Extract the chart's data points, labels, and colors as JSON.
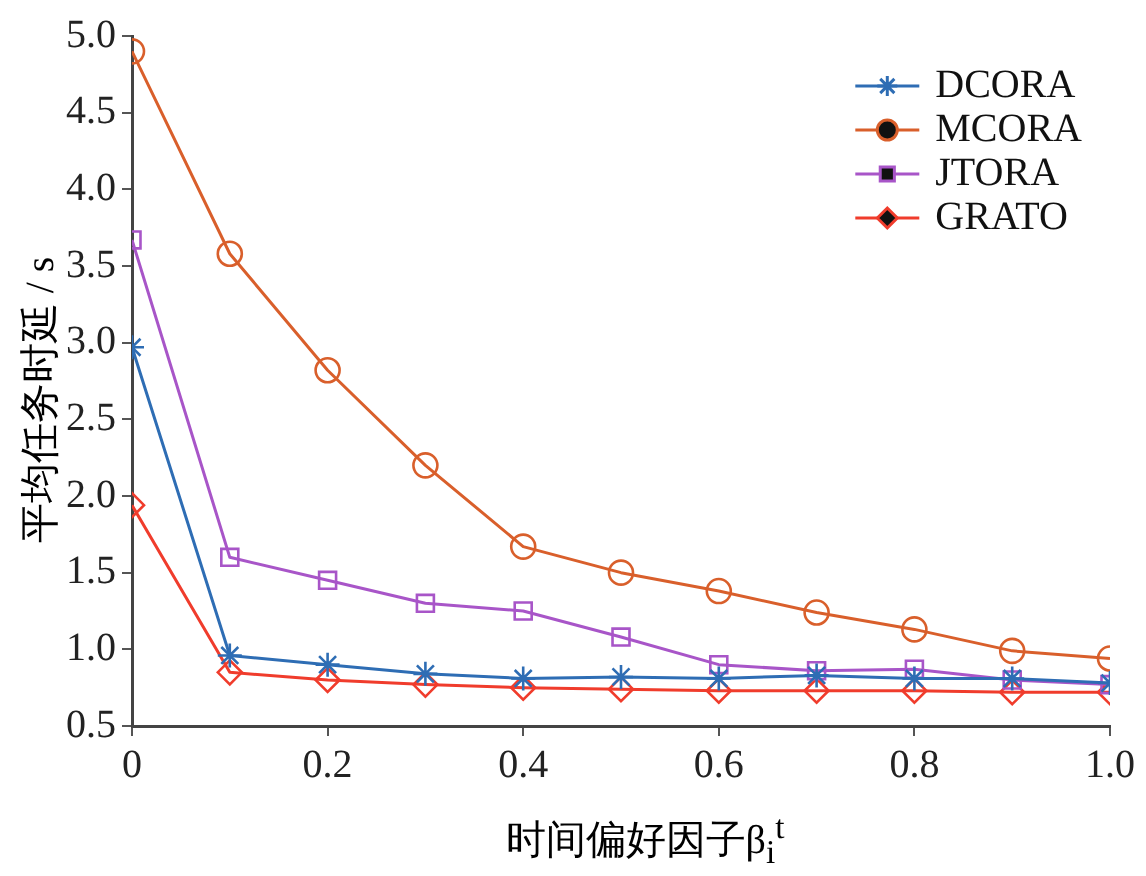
{
  "chart_data": {
    "type": "line",
    "xlabel": "时间偏好因子β$_{i}$$^{t}$",
    "ylabel": "平均任务时延 / s",
    "x": [
      0,
      0.1,
      0.2,
      0.3,
      0.4,
      0.5,
      0.6,
      0.7,
      0.8,
      0.9,
      1.0
    ],
    "series": [
      {
        "name": "DCORA",
        "color": "#2e6db4",
        "marker": "cross",
        "values": [
          2.97,
          0.96,
          0.9,
          0.84,
          0.81,
          0.82,
          0.81,
          0.83,
          0.81,
          0.81,
          0.78
        ]
      },
      {
        "name": "MCORA",
        "color": "#d95f2b",
        "marker": "circle",
        "values": [
          4.9,
          3.58,
          2.82,
          2.2,
          1.67,
          1.5,
          1.38,
          1.24,
          1.13,
          0.99,
          0.94
        ]
      },
      {
        "name": "JTORA",
        "color": "#a855c8",
        "marker": "square",
        "values": [
          3.67,
          1.6,
          1.45,
          1.3,
          1.25,
          1.08,
          0.9,
          0.86,
          0.87,
          0.8,
          0.77
        ]
      },
      {
        "name": "GRATO",
        "color": "#f03c2c",
        "marker": "diamond",
        "values": [
          1.94,
          0.85,
          0.8,
          0.77,
          0.75,
          0.74,
          0.73,
          0.73,
          0.73,
          0.72,
          0.72
        ]
      }
    ],
    "xlim": [
      0,
      1.0
    ],
    "xticks": [
      0,
      0.2,
      0.4,
      0.6,
      0.8,
      {
        "value": 1.0,
        "label": "1.0"
      }
    ],
    "ylim": [
      0.5,
      5.0
    ],
    "yticks": [
      0.5,
      {
        "value": 1.0,
        "label": "1.0"
      },
      1.5,
      {
        "value": 2.0,
        "label": "2.0"
      },
      2.5,
      {
        "value": 3.0,
        "label": "3.0"
      },
      3.5,
      {
        "value": 4.0,
        "label": "4.0"
      },
      4.5,
      {
        "value": 5.0,
        "label": "5.0"
      }
    ],
    "grid": false,
    "legend": "top right"
  }
}
